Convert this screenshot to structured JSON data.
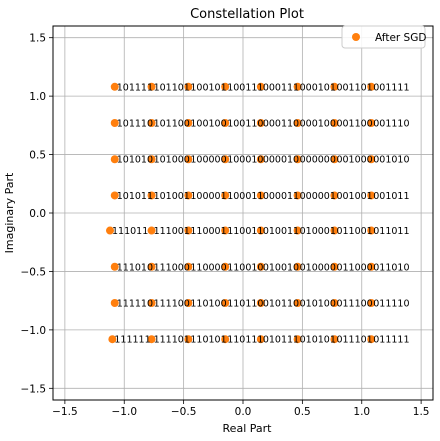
{
  "chart_data": {
    "type": "scatter",
    "title": "Constellation Plot",
    "xlabel": "Real Part",
    "ylabel": "Imaginary Part",
    "xlim": [
      -1.6,
      1.6
    ],
    "ylim": [
      -1.6,
      1.6
    ],
    "x_ticks": [
      -1.5,
      -1.0,
      -0.5,
      0.0,
      0.5,
      1.0,
      1.5
    ],
    "x_tick_labels": [
      "−1.5",
      "−1.0",
      "−0.5",
      "0.0",
      "0.5",
      "1.0",
      "1.5"
    ],
    "y_ticks": [
      1.5,
      1.0,
      0.5,
      0.0,
      -0.5,
      -1.0,
      -1.5
    ],
    "y_tick_labels": [
      "1.5",
      "1.0",
      "0.5",
      "0.0",
      "−0.5",
      "−1.0",
      "−1.5"
    ],
    "grid": true,
    "legend_position": "top-right",
    "series": [
      {
        "name": "After SGD",
        "color": "#ff7f0e",
        "points": [
          {
            "x": -1.08,
            "y": 1.08,
            "label": "101111"
          },
          {
            "x": -0.77,
            "y": 1.08,
            "label": "101101"
          },
          {
            "x": -0.46,
            "y": 1.08,
            "label": "100101"
          },
          {
            "x": -0.15,
            "y": 1.08,
            "label": "100111"
          },
          {
            "x": 0.15,
            "y": 1.08,
            "label": "000111"
          },
          {
            "x": 0.46,
            "y": 1.08,
            "label": "000101"
          },
          {
            "x": 0.77,
            "y": 1.08,
            "label": "001101"
          },
          {
            "x": 1.08,
            "y": 1.08,
            "label": "001111"
          },
          {
            "x": -1.08,
            "y": 0.77,
            "label": "101110"
          },
          {
            "x": -0.77,
            "y": 0.77,
            "label": "101100"
          },
          {
            "x": -0.46,
            "y": 0.77,
            "label": "100100"
          },
          {
            "x": -0.15,
            "y": 0.77,
            "label": "100110"
          },
          {
            "x": 0.15,
            "y": 0.77,
            "label": "000110"
          },
          {
            "x": 0.46,
            "y": 0.77,
            "label": "000100"
          },
          {
            "x": 0.77,
            "y": 0.77,
            "label": "001100"
          },
          {
            "x": 1.08,
            "y": 0.77,
            "label": "001110"
          },
          {
            "x": -1.08,
            "y": 0.46,
            "label": "101010"
          },
          {
            "x": -0.77,
            "y": 0.46,
            "label": "101000"
          },
          {
            "x": -0.46,
            "y": 0.46,
            "label": "100000"
          },
          {
            "x": -0.15,
            "y": 0.46,
            "label": "100010"
          },
          {
            "x": 0.15,
            "y": 0.46,
            "label": "000010"
          },
          {
            "x": 0.46,
            "y": 0.46,
            "label": "000000"
          },
          {
            "x": 0.77,
            "y": 0.46,
            "label": "001000"
          },
          {
            "x": 1.08,
            "y": 0.46,
            "label": "001010"
          },
          {
            "x": -1.08,
            "y": 0.15,
            "label": "101011"
          },
          {
            "x": -0.77,
            "y": 0.15,
            "label": "101001"
          },
          {
            "x": -0.46,
            "y": 0.15,
            "label": "100001"
          },
          {
            "x": -0.15,
            "y": 0.15,
            "label": "100011"
          },
          {
            "x": 0.15,
            "y": 0.15,
            "label": "000011"
          },
          {
            "x": 0.46,
            "y": 0.15,
            "label": "000001"
          },
          {
            "x": 0.77,
            "y": 0.15,
            "label": "001001"
          },
          {
            "x": 1.08,
            "y": 0.15,
            "label": "001011"
          },
          {
            "x": -1.12,
            "y": -0.15,
            "label": "111011"
          },
          {
            "x": -0.77,
            "y": -0.15,
            "label": "111001"
          },
          {
            "x": -0.46,
            "y": -0.15,
            "label": "110001"
          },
          {
            "x": -0.15,
            "y": -0.15,
            "label": "110011"
          },
          {
            "x": 0.15,
            "y": -0.15,
            "label": "010011"
          },
          {
            "x": 0.46,
            "y": -0.15,
            "label": "010001"
          },
          {
            "x": 0.77,
            "y": -0.15,
            "label": "011001"
          },
          {
            "x": 1.08,
            "y": -0.15,
            "label": "011011"
          },
          {
            "x": -1.08,
            "y": -0.46,
            "label": "111010"
          },
          {
            "x": -0.77,
            "y": -0.46,
            "label": "111000"
          },
          {
            "x": -0.46,
            "y": -0.46,
            "label": "110000"
          },
          {
            "x": -0.15,
            "y": -0.46,
            "label": "110010"
          },
          {
            "x": 0.15,
            "y": -0.46,
            "label": "010010"
          },
          {
            "x": 0.46,
            "y": -0.46,
            "label": "010000"
          },
          {
            "x": 0.77,
            "y": -0.46,
            "label": "011000"
          },
          {
            "x": 1.08,
            "y": -0.46,
            "label": "011010"
          },
          {
            "x": -1.08,
            "y": -0.77,
            "label": "111110"
          },
          {
            "x": -0.77,
            "y": -0.77,
            "label": "111100"
          },
          {
            "x": -0.46,
            "y": -0.77,
            "label": "110100"
          },
          {
            "x": -0.15,
            "y": -0.77,
            "label": "110110"
          },
          {
            "x": 0.15,
            "y": -0.77,
            "label": "010110"
          },
          {
            "x": 0.46,
            "y": -0.77,
            "label": "010100"
          },
          {
            "x": 0.77,
            "y": -0.77,
            "label": "011100"
          },
          {
            "x": 1.08,
            "y": -0.77,
            "label": "011110"
          },
          {
            "x": -1.1,
            "y": -1.08,
            "label": "111111"
          },
          {
            "x": -0.77,
            "y": -1.08,
            "label": "111101"
          },
          {
            "x": -0.46,
            "y": -1.08,
            "label": "110101"
          },
          {
            "x": -0.15,
            "y": -1.08,
            "label": "110111"
          },
          {
            "x": 0.15,
            "y": -1.08,
            "label": "010111"
          },
          {
            "x": 0.46,
            "y": -1.08,
            "label": "010101"
          },
          {
            "x": 0.77,
            "y": -1.08,
            "label": "011101"
          },
          {
            "x": 1.08,
            "y": -1.08,
            "label": "011111"
          }
        ]
      }
    ]
  },
  "colors": {
    "grid": "#b0b0b0",
    "axes": "#000000",
    "background": "#ffffff"
  }
}
